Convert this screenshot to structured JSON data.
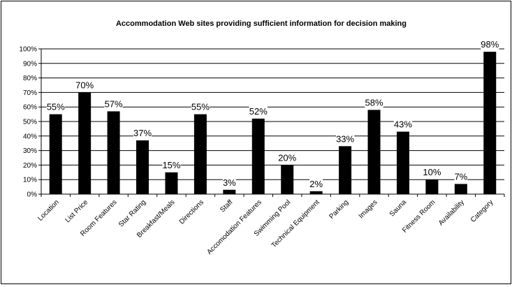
{
  "chart_data": {
    "type": "bar",
    "title": "Accommodation Web sites providing sufficient information for decision making",
    "xlabel": "",
    "ylabel": "",
    "ylim": [
      0,
      100
    ],
    "yticks": [
      "0%",
      "10%",
      "20%",
      "30%",
      "40%",
      "50%",
      "60%",
      "70%",
      "80%",
      "90%",
      "100%"
    ],
    "grid": true,
    "legend": "none",
    "bar_color": "#000000",
    "categories": [
      "Location",
      "List Price",
      "Room Features",
      "Star Rating",
      "Breakfast/Meals",
      "Directions",
      "Staff",
      "Accomodation Features",
      "Swimming Pool",
      "Technical Equipment",
      "Parking",
      "Images",
      "Sauna",
      "Fitness Room",
      "Availability",
      "Category"
    ],
    "values": [
      55,
      70,
      57,
      37,
      15,
      55,
      3,
      52,
      20,
      2,
      33,
      58,
      43,
      10,
      7,
      98
    ],
    "data_labels": [
      "55%",
      "70%",
      "57%",
      "37%",
      "15%",
      "55%",
      "3%",
      "52%",
      "20%",
      "2%",
      "33%",
      "58%",
      "43%",
      "10%",
      "7%",
      "98%"
    ]
  }
}
